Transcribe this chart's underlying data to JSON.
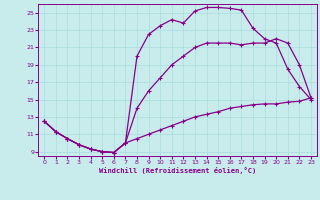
{
  "xlabel": "Windchill (Refroidissement éolien,°C)",
  "background_color": "#c8ecec",
  "grid_color": "#aadddd",
  "line_color": "#880088",
  "xlim": [
    -0.5,
    23.5
  ],
  "ylim": [
    8.5,
    26.0
  ],
  "xticks": [
    0,
    1,
    2,
    3,
    4,
    5,
    6,
    7,
    8,
    9,
    10,
    11,
    12,
    13,
    14,
    15,
    16,
    17,
    18,
    19,
    20,
    21,
    22,
    23
  ],
  "yticks": [
    9,
    11,
    13,
    15,
    17,
    19,
    21,
    23,
    25
  ],
  "line1_x": [
    0,
    1,
    2,
    3,
    4,
    5,
    6,
    7,
    8,
    9,
    10,
    11,
    12,
    13,
    14,
    15,
    16,
    17,
    18,
    19,
    20,
    21,
    22,
    23
  ],
  "line1_y": [
    12.5,
    11.3,
    10.5,
    9.8,
    9.3,
    9.0,
    8.9,
    10.0,
    20.0,
    22.5,
    23.5,
    24.2,
    23.8,
    25.2,
    25.6,
    25.6,
    25.5,
    25.3,
    23.2,
    22.0,
    21.5,
    18.5,
    16.5,
    15.0
  ],
  "line2_x": [
    0,
    1,
    2,
    3,
    4,
    5,
    6,
    7,
    8,
    9,
    10,
    11,
    12,
    13,
    14,
    15,
    16,
    17,
    18,
    19,
    20,
    21,
    22,
    23
  ],
  "line2_y": [
    12.5,
    11.3,
    10.5,
    9.8,
    9.3,
    9.0,
    8.9,
    10.0,
    14.0,
    16.0,
    17.5,
    19.0,
    20.0,
    21.0,
    21.5,
    21.5,
    21.5,
    21.3,
    21.5,
    21.5,
    22.0,
    21.5,
    19.0,
    15.2
  ],
  "line3_x": [
    0,
    1,
    2,
    3,
    4,
    5,
    6,
    7,
    8,
    9,
    10,
    11,
    12,
    13,
    14,
    15,
    16,
    17,
    18,
    19,
    20,
    21,
    22,
    23
  ],
  "line3_y": [
    12.5,
    11.3,
    10.5,
    9.8,
    9.3,
    9.0,
    8.9,
    10.0,
    10.5,
    11.0,
    11.5,
    12.0,
    12.5,
    13.0,
    13.3,
    13.6,
    14.0,
    14.2,
    14.4,
    14.5,
    14.5,
    14.7,
    14.8,
    15.2
  ]
}
